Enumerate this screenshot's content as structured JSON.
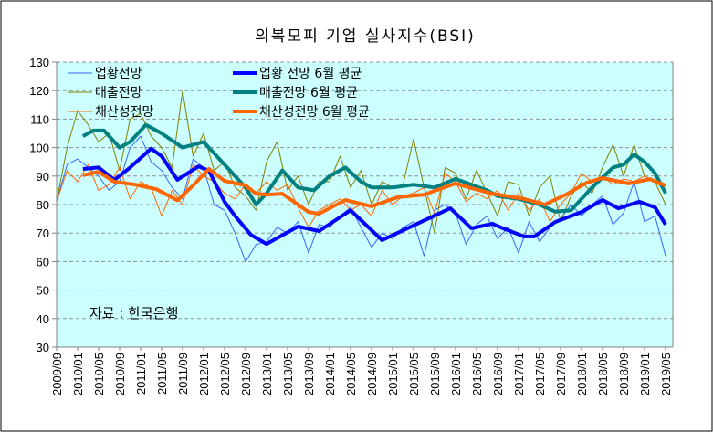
{
  "chart_data": {
    "type": "line",
    "title": "의복모피 기업 실사지수(BSI)",
    "xlabel": "",
    "ylabel": "",
    "ylim": [
      30,
      130
    ],
    "yticks": [
      "30",
      "40",
      "50",
      "60",
      "70",
      "80",
      "90",
      "100",
      "110",
      "120",
      "130"
    ],
    "grid": true,
    "legend_position": "top-left",
    "annotation": "자료 : 한국은행",
    "x_start": "2009/09",
    "x_tick_labels": [
      "2009/09",
      "2010/01",
      "2010/05",
      "2010/09",
      "2011/01",
      "2011/05",
      "2011/09",
      "2012/01",
      "2012/05",
      "2012/09",
      "2013/01",
      "2013/05",
      "2013/09",
      "2014/01",
      "2014/05",
      "2014/09",
      "2015/01",
      "2015/05",
      "2015/09",
      "2016/01",
      "2016/05",
      "2016/09",
      "2017/01",
      "2017/05",
      "2017/09",
      "2018/01",
      "2018/05",
      "2018/09",
      "2019/01",
      "2019/05"
    ],
    "series": [
      {
        "name": "업황전망",
        "color": "#3366ff",
        "style": "thin",
        "months_since_start": [
          0,
          2,
          4,
          6,
          8,
          10,
          12,
          14,
          16,
          18,
          20,
          22,
          24,
          26,
          28,
          30,
          32,
          34,
          36,
          38,
          40,
          42,
          44,
          46,
          48,
          50,
          52,
          54,
          56,
          58,
          60,
          62,
          64,
          66,
          68,
          70,
          72,
          74,
          76,
          78,
          80,
          82,
          84,
          86,
          88,
          90,
          92,
          94,
          96,
          98,
          100,
          102,
          104,
          106,
          108,
          110,
          112,
          114,
          116
        ],
        "values": [
          81,
          94,
          96,
          93,
          90,
          85,
          88,
          100,
          104,
          95,
          92,
          86,
          82,
          96,
          93,
          80,
          78,
          70,
          60,
          66,
          67,
          72,
          70,
          74,
          63,
          73,
          72,
          76,
          79,
          72,
          65,
          70,
          68,
          72,
          74,
          62,
          78,
          80,
          77,
          66,
          73,
          76,
          68,
          72,
          63,
          74,
          67,
          72,
          75,
          80,
          76,
          80,
          83,
          73,
          77,
          88,
          74,
          76,
          62
        ]
      },
      {
        "name": "매출전망",
        "color": "#808000",
        "style": "thin",
        "months_since_start": [
          0,
          2,
          4,
          6,
          8,
          10,
          12,
          14,
          16,
          18,
          20,
          22,
          24,
          26,
          28,
          30,
          32,
          34,
          36,
          38,
          40,
          42,
          44,
          46,
          48,
          50,
          52,
          54,
          56,
          58,
          60,
          62,
          64,
          66,
          68,
          70,
          72,
          74,
          76,
          78,
          80,
          82,
          84,
          86,
          88,
          90,
          92,
          94,
          96,
          98,
          100,
          102,
          104,
          106,
          108,
          110,
          112,
          114,
          116
        ],
        "values": [
          81,
          100,
          113,
          108,
          102,
          105,
          92,
          110,
          112,
          104,
          100,
          93,
          120,
          97,
          105,
          92,
          95,
          86,
          83,
          78,
          95,
          102,
          85,
          90,
          80,
          88,
          88,
          97,
          86,
          92,
          80,
          88,
          86,
          87,
          103,
          86,
          70,
          93,
          91,
          82,
          92,
          84,
          76,
          88,
          87,
          76,
          86,
          90,
          74,
          83,
          88,
          84,
          93,
          101,
          90,
          101,
          90,
          88,
          80
        ]
      },
      {
        "name": "채산성전망",
        "color": "#ff6600",
        "style": "thin",
        "months_since_start": [
          0,
          2,
          4,
          6,
          8,
          10,
          12,
          14,
          16,
          18,
          20,
          22,
          24,
          26,
          28,
          30,
          32,
          34,
          36,
          38,
          40,
          42,
          44,
          46,
          48,
          50,
          52,
          54,
          56,
          58,
          60,
          62,
          64,
          66,
          68,
          70,
          72,
          74,
          76,
          78,
          80,
          82,
          84,
          86,
          88,
          90,
          92,
          94,
          96,
          98,
          100,
          102,
          104,
          106,
          108,
          110,
          112,
          114,
          116
        ],
        "values": [
          81,
          92,
          88,
          94,
          85,
          87,
          93,
          82,
          88,
          86,
          76,
          85,
          80,
          94,
          90,
          88,
          84,
          82,
          87,
          84,
          88,
          85,
          87,
          79,
          72,
          78,
          80,
          82,
          78,
          80,
          76,
          85,
          80,
          83,
          84,
          86,
          77,
          91,
          88,
          81,
          84,
          82,
          85,
          78,
          84,
          78,
          82,
          74,
          80,
          84,
          91,
          88,
          90,
          87,
          89,
          88,
          90,
          88,
          85
        ]
      },
      {
        "name": "업황 전망 6월 평균",
        "color": "#0000ff",
        "style": "thick",
        "months_since_start": [
          5,
          8,
          11,
          14,
          18,
          20,
          23,
          27,
          29,
          32,
          34,
          37,
          40,
          46,
          50,
          56,
          62,
          68,
          75,
          79,
          83,
          85,
          89,
          91,
          95,
          100,
          104,
          107,
          111,
          114,
          116
        ],
        "values": [
          92.5,
          93,
          88.7,
          93,
          99.6,
          97,
          88.7,
          93.4,
          91.9,
          81,
          76,
          69.4,
          66.2,
          72.3,
          70.7,
          78,
          67.5,
          72.7,
          78.7,
          71.7,
          73.3,
          71.7,
          68.8,
          68.8,
          73.9,
          77.4,
          81.6,
          78.7,
          81,
          79,
          73
        ]
      },
      {
        "name": "매출전망 6월 평균",
        "color": "#008080",
        "style": "thick",
        "months_since_start": [
          5,
          7,
          9,
          12,
          14,
          17,
          20,
          24,
          26,
          28,
          32,
          36,
          38,
          40,
          43,
          46,
          49,
          52,
          55,
          58,
          60,
          64,
          68,
          72,
          76,
          79,
          82,
          84,
          88,
          92,
          95,
          98,
          102,
          106,
          108,
          110,
          112,
          114,
          116
        ],
        "values": [
          104,
          106,
          106,
          100,
          102,
          108,
          105,
          100,
          101,
          102,
          94,
          86,
          80,
          84,
          92,
          86,
          85,
          90,
          93,
          88,
          86,
          86,
          87,
          86,
          89,
          87,
          85,
          83,
          82,
          80,
          77.5,
          78,
          86,
          93,
          94,
          97.6,
          95,
          91,
          84
        ]
      },
      {
        "name": "채산성전망 6월 평균",
        "color": "#ff6600",
        "style": "thick",
        "months_since_start": [
          5,
          8,
          11,
          15,
          19,
          23,
          26,
          29,
          32,
          36,
          38,
          40,
          43,
          48,
          50,
          55,
          60,
          65,
          70,
          76,
          79,
          83,
          89,
          93,
          97,
          101,
          104,
          109,
          113,
          116
        ],
        "values": [
          90.3,
          91.5,
          88,
          87,
          85.4,
          81.5,
          86.7,
          92.5,
          88.3,
          86.7,
          83.8,
          83.5,
          83.8,
          77.4,
          76.8,
          81.6,
          79.4,
          82.6,
          83.5,
          87.4,
          85.8,
          83.8,
          82,
          80,
          83.5,
          87.7,
          89.3,
          87.4,
          88.9,
          86.7
        ]
      }
    ]
  }
}
